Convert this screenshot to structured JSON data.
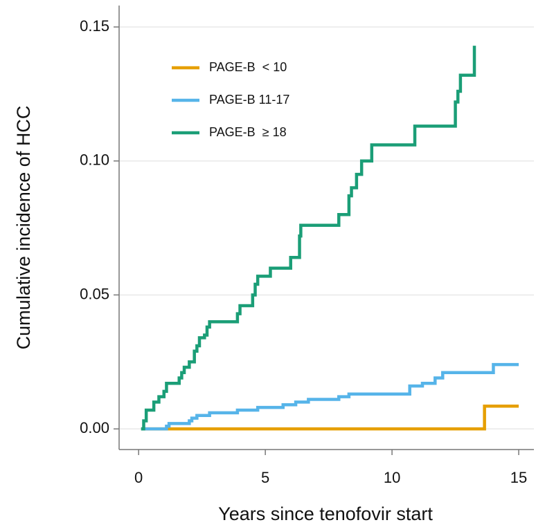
{
  "chart_data": {
    "type": "step",
    "x_label": "Years since tenofovir start",
    "y_label": "Cumulative incidence of HCC",
    "xlim": [
      -0.77,
      15.6
    ],
    "ylim": [
      -0.0077,
      0.158
    ],
    "xticks": [
      0,
      5,
      10,
      15
    ],
    "yticks": [
      {
        "value": 0,
        "label": "0.00"
      },
      {
        "value": 0.05,
        "label": "0.05"
      },
      {
        "value": 0.1,
        "label": "0.10"
      },
      {
        "value": 0.15,
        "label": "0.15"
      }
    ],
    "grid": true,
    "legend_position": "top-left",
    "series": [
      {
        "name": "PAGE-B  < 10",
        "color": "#E69F00",
        "x": [
          0.1,
          13.6,
          13.65,
          15.0
        ],
        "values": [
          0,
          0,
          0.0085,
          0.0085
        ]
      },
      {
        "name": "PAGE-B 11-17",
        "color": "#56B4E9",
        "x": [
          0.1,
          1.0,
          1.1,
          1.2,
          1.9,
          2.0,
          2.1,
          2.3,
          2.7,
          2.8,
          3.8,
          3.9,
          4.6,
          4.7,
          5.6,
          5.7,
          6.1,
          6.2,
          6.6,
          6.7,
          7.8,
          7.9,
          8.2,
          8.3,
          10.6,
          10.7,
          11.1,
          11.2,
          11.6,
          11.7,
          11.9,
          12.0,
          13.9,
          14.0,
          15.0
        ],
        "values": [
          0,
          0,
          0.001,
          0.002,
          0.002,
          0.003,
          0.004,
          0.005,
          0.005,
          0.006,
          0.006,
          0.007,
          0.007,
          0.008,
          0.008,
          0.009,
          0.009,
          0.01,
          0.01,
          0.011,
          0.011,
          0.012,
          0.012,
          0.013,
          0.013,
          0.016,
          0.016,
          0.017,
          0.017,
          0.019,
          0.019,
          0.021,
          0.021,
          0.024,
          0.024
        ]
      },
      {
        "name": "PAGE-B  ≥ 18",
        "color": "#1B9E77",
        "x": [
          0.1,
          0.2,
          0.3,
          0.5,
          0.6,
          0.8,
          1.0,
          1.1,
          1.5,
          1.6,
          1.7,
          1.8,
          2.0,
          2.2,
          2.3,
          2.4,
          2.6,
          2.7,
          2.8,
          3.8,
          3.9,
          4.0,
          4.4,
          4.5,
          4.6,
          4.7,
          5.1,
          5.2,
          5.9,
          6.0,
          6.3,
          6.35,
          6.4,
          7.8,
          7.9,
          8.2,
          8.3,
          8.4,
          8.6,
          8.8,
          9.1,
          9.2,
          10.8,
          10.9,
          12.4,
          12.5,
          12.6,
          12.7,
          13.2,
          13.25
        ],
        "values": [
          0,
          0.003,
          0.007,
          0.007,
          0.01,
          0.012,
          0.014,
          0.017,
          0.017,
          0.019,
          0.021,
          0.023,
          0.025,
          0.029,
          0.031,
          0.034,
          0.035,
          0.038,
          0.04,
          0.04,
          0.043,
          0.046,
          0.046,
          0.05,
          0.054,
          0.057,
          0.057,
          0.06,
          0.06,
          0.064,
          0.064,
          0.072,
          0.076,
          0.076,
          0.08,
          0.08,
          0.087,
          0.09,
          0.095,
          0.1,
          0.1,
          0.106,
          0.106,
          0.113,
          0.113,
          0.122,
          0.126,
          0.132,
          0.132,
          0.143
        ]
      }
    ]
  }
}
